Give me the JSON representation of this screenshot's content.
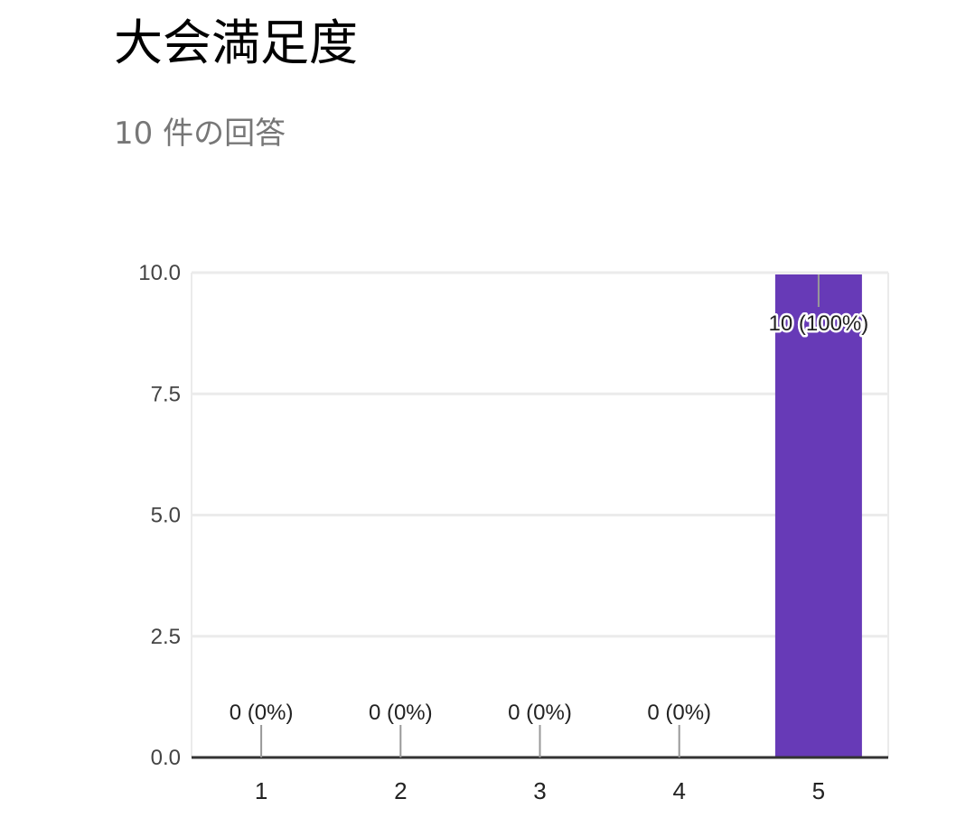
{
  "title": "大会満足度",
  "subtitle": "10 件の回答",
  "colors": {
    "bar": "#673AB7",
    "grid": "#EBEBEB",
    "axis": "#333333",
    "label_line": "#999999"
  },
  "chart_data": {
    "type": "bar",
    "categories": [
      "1",
      "2",
      "3",
      "4",
      "5"
    ],
    "values": [
      0,
      0,
      0,
      0,
      10
    ],
    "data_labels": [
      "0 (0%)",
      "0 (0%)",
      "0 (0%)",
      "0 (0%)",
      "10 (100%)"
    ],
    "y_ticks": [
      "0.0",
      "2.5",
      "5.0",
      "7.5",
      "10.0"
    ],
    "ylim": [
      0,
      10
    ],
    "grid": true,
    "legend": "none"
  }
}
